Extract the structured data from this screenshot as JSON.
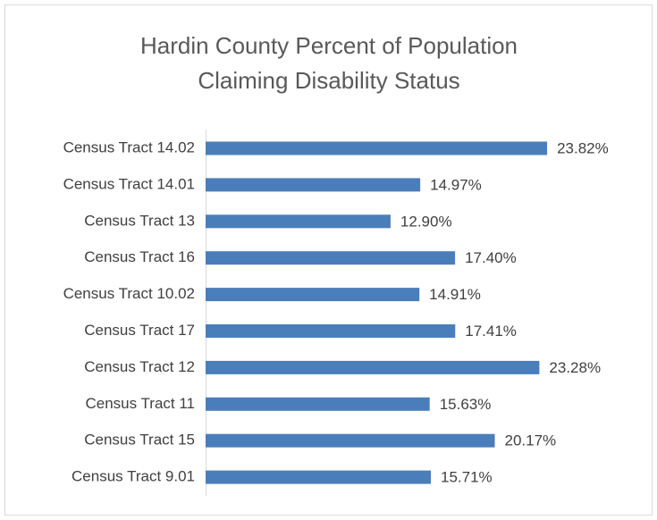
{
  "chart_data": {
    "type": "bar",
    "orientation": "horizontal",
    "title": "Hardin County Percent of Population Claiming Disability Status",
    "categories": [
      "Census Tract 14.02",
      "Census Tract 14.01",
      "Census Tract 13",
      "Census Tract 16",
      "Census Tract 10.02",
      "Census Tract 17",
      "Census Tract 12",
      "Census Tract 11",
      "Census Tract 15",
      "Census Tract 9.01"
    ],
    "values": [
      23.82,
      14.97,
      12.9,
      17.4,
      14.91,
      17.41,
      23.28,
      15.63,
      20.17,
      15.71
    ],
    "value_labels": [
      "23.82%",
      "14.97%",
      "12.90%",
      "17.40%",
      "14.91%",
      "17.41%",
      "23.28%",
      "15.63%",
      "20.17%",
      "15.71%"
    ],
    "color": "#4a7ebb",
    "xlim": [
      0,
      25
    ]
  }
}
